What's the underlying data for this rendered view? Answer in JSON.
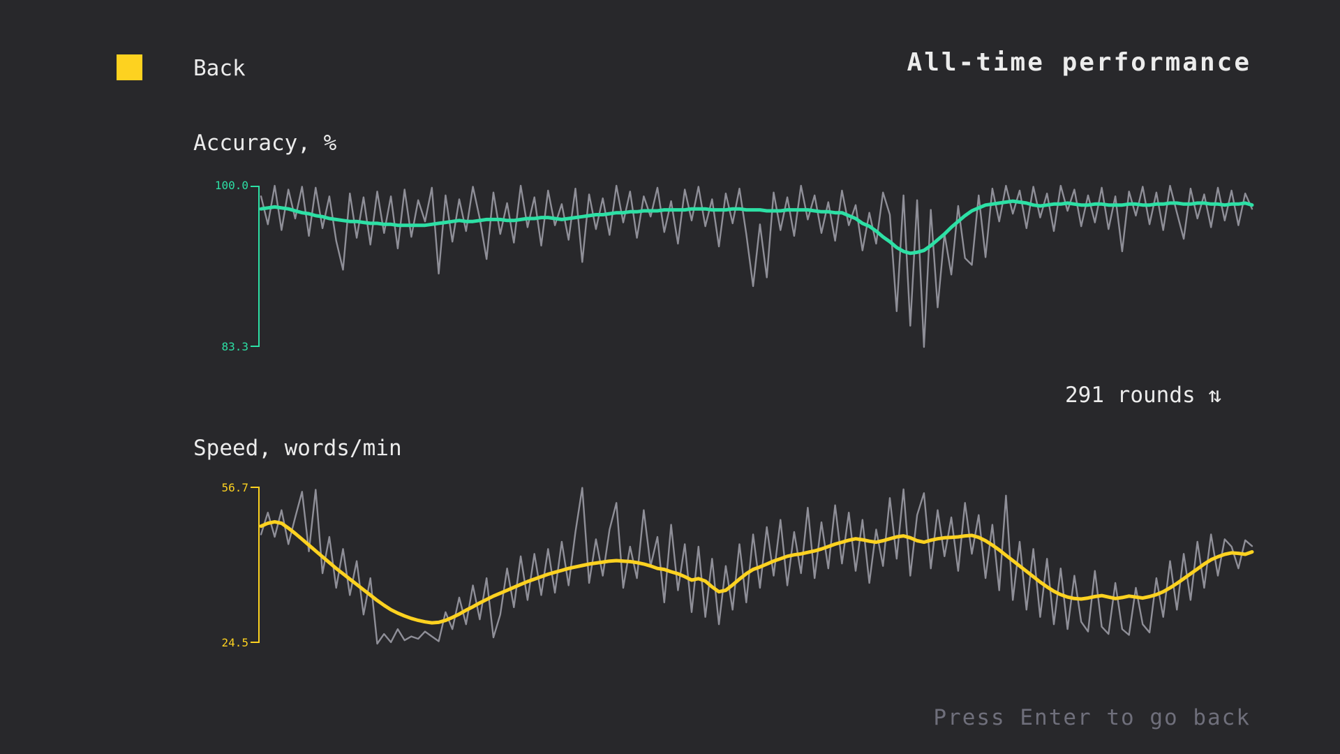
{
  "colors": {
    "background": "#28282b",
    "text": "#ececec",
    "muted": "#6f6f7b",
    "yellow": "#fdd220",
    "green": "#2de0a5",
    "gray_line": "#8f8f98"
  },
  "header": {
    "back_label": "Back",
    "title": "All-time performance"
  },
  "stats": {
    "rounds_label": "291 rounds",
    "sort_icon": "⇅"
  },
  "footer": {
    "hint": "Press Enter to go back"
  },
  "chart_data": [
    {
      "type": "line",
      "title": "Accuracy, %",
      "rounds_total": 291,
      "ylim": [
        83.3,
        100.0
      ],
      "y_tick_labels": [
        "100.0",
        "83.3"
      ],
      "axis_color": "#2de0a5",
      "legend_position": "none",
      "grid": false,
      "series": [
        {
          "name": "per-round accuracy",
          "color": "#8f8f98",
          "values": [
            98.9,
            96.0,
            100.0,
            95.4,
            99.6,
            96.6,
            99.9,
            94.8,
            99.8,
            95.6,
            98.9,
            94.3,
            91.3,
            99.2,
            94.6,
            98.8,
            93.9,
            99.4,
            95.1,
            98.9,
            93.5,
            99.6,
            94.7,
            98.5,
            96.3,
            99.8,
            90.9,
            99.0,
            94.2,
            98.6,
            95.3,
            99.9,
            96.6,
            92.4,
            99.3,
            95.0,
            98.2,
            94.1,
            100.0,
            95.7,
            98.8,
            93.8,
            99.5,
            95.9,
            98.1,
            94.4,
            99.7,
            92.1,
            99.1,
            95.5,
            98.7,
            94.9,
            100.0,
            96.2,
            99.4,
            94.6,
            98.9,
            96.8,
            99.8,
            95.2,
            98.4,
            94.0,
            99.6,
            96.4,
            99.9,
            95.8,
            98.6,
            93.7,
            99.2,
            96.1,
            99.7,
            95.0,
            89.6,
            96.0,
            90.5,
            99.3,
            95.4,
            98.8,
            94.8,
            100.0,
            96.5,
            99.0,
            95.1,
            98.3,
            94.3,
            99.5,
            95.9,
            98.0,
            93.3,
            97.2,
            94.0,
            99.3,
            97.0,
            87.0,
            99.0,
            85.5,
            98.5,
            83.3,
            97.5,
            87.4,
            95.0,
            90.8,
            97.9,
            92.5,
            91.8,
            99.0,
            92.6,
            99.7,
            96.3,
            100.0,
            97.1,
            99.5,
            95.6,
            99.9,
            96.7,
            99.2,
            95.3,
            100.0,
            97.4,
            99.6,
            95.8,
            99.0,
            96.2,
            99.8,
            95.5,
            98.9,
            93.2,
            99.4,
            96.9,
            99.9,
            96.0,
            99.3,
            95.4,
            100.0,
            97.2,
            94.5,
            99.7,
            96.6,
            99.1,
            95.7,
            99.8,
            96.4,
            99.5,
            95.9,
            99.2,
            97.6
          ]
        },
        {
          "name": "running average accuracy",
          "color": "#2de0a5",
          "values": [
            97.6,
            97.7,
            97.8,
            97.7,
            97.6,
            97.4,
            97.2,
            97.1,
            96.9,
            96.8,
            96.6,
            96.5,
            96.4,
            96.3,
            96.3,
            96.2,
            96.1,
            96.1,
            96.0,
            96.0,
            95.9,
            95.9,
            95.9,
            95.9,
            95.9,
            96.0,
            96.1,
            96.2,
            96.3,
            96.4,
            96.3,
            96.3,
            96.4,
            96.5,
            96.5,
            96.5,
            96.4,
            96.4,
            96.5,
            96.6,
            96.6,
            96.7,
            96.7,
            96.6,
            96.5,
            96.6,
            96.7,
            96.8,
            96.9,
            97.0,
            97.0,
            97.1,
            97.2,
            97.2,
            97.3,
            97.3,
            97.4,
            97.4,
            97.4,
            97.5,
            97.5,
            97.5,
            97.5,
            97.6,
            97.6,
            97.6,
            97.5,
            97.5,
            97.5,
            97.6,
            97.6,
            97.5,
            97.5,
            97.5,
            97.4,
            97.4,
            97.4,
            97.5,
            97.5,
            97.5,
            97.5,
            97.4,
            97.3,
            97.3,
            97.2,
            97.2,
            96.9,
            96.6,
            96.1,
            95.8,
            95.3,
            94.7,
            94.2,
            93.6,
            93.2,
            93.0,
            93.1,
            93.3,
            93.8,
            94.4,
            95.0,
            95.7,
            96.3,
            96.9,
            97.4,
            97.7,
            98.0,
            98.1,
            98.2,
            98.3,
            98.4,
            98.3,
            98.2,
            98.0,
            97.9,
            98.0,
            98.1,
            98.1,
            98.2,
            98.1,
            98.0,
            98.0,
            98.1,
            98.1,
            98.0,
            98.0,
            98.0,
            98.1,
            98.1,
            98.0,
            98.0,
            98.1,
            98.1,
            98.2,
            98.2,
            98.1,
            98.1,
            98.2,
            98.2,
            98.1,
            98.1,
            98.0,
            98.1,
            98.1,
            98.2,
            98.0
          ]
        }
      ]
    },
    {
      "type": "line",
      "title": "Speed, words/min",
      "rounds_total": 291,
      "ylim": [
        24.5,
        56.7
      ],
      "y_tick_labels": [
        "56.7",
        "24.5"
      ],
      "axis_color": "#fdd220",
      "legend_position": "none",
      "grid": false,
      "series": [
        {
          "name": "per-round speed",
          "color": "#8f8f98",
          "values": [
            47.0,
            51.5,
            46.5,
            52.0,
            45.0,
            50.5,
            55.8,
            43.5,
            56.2,
            39.0,
            46.5,
            36.0,
            44.0,
            34.5,
            41.5,
            30.5,
            38.0,
            24.5,
            26.5,
            24.8,
            27.5,
            25.2,
            26.0,
            25.5,
            27.0,
            26.0,
            25.0,
            31.0,
            27.5,
            34.0,
            28.5,
            36.5,
            29.5,
            38.0,
            25.8,
            30.5,
            40.0,
            32.0,
            42.5,
            33.5,
            43.0,
            34.5,
            44.0,
            35.0,
            45.5,
            36.5,
            47.5,
            56.6,
            37.0,
            46.0,
            38.5,
            48.0,
            53.5,
            36.0,
            44.5,
            38.0,
            52.0,
            40.5,
            46.5,
            33.0,
            49.0,
            35.5,
            45.0,
            31.0,
            44.5,
            30.0,
            42.0,
            28.5,
            40.5,
            31.5,
            45.0,
            33.0,
            47.0,
            36.0,
            48.5,
            38.5,
            50.0,
            36.5,
            47.5,
            39.0,
            52.5,
            38.0,
            49.5,
            40.0,
            53.0,
            41.0,
            51.5,
            39.5,
            50.0,
            37.0,
            48.0,
            40.5,
            54.5,
            42.0,
            56.3,
            38.5,
            51.0,
            55.5,
            40.0,
            52.0,
            42.5,
            50.5,
            39.5,
            53.5,
            43.0,
            51.0,
            38.0,
            49.0,
            35.5,
            55.0,
            33.5,
            45.5,
            31.5,
            44.0,
            30.0,
            42.0,
            28.5,
            40.0,
            27.5,
            38.5,
            29.0,
            27.0,
            39.5,
            28.0,
            26.5,
            37.0,
            27.5,
            26.3,
            36.0,
            28.5,
            26.8,
            38.0,
            30.0,
            41.5,
            31.5,
            43.0,
            33.5,
            45.5,
            36.0,
            47.0,
            38.5,
            46.0,
            44.5,
            40.0,
            45.8,
            44.6
          ]
        },
        {
          "name": "running average speed",
          "color": "#fdd220",
          "values": [
            48.7,
            49.3,
            49.6,
            49.3,
            48.3,
            47.2,
            46.0,
            44.8,
            43.6,
            42.4,
            41.2,
            40.0,
            38.9,
            37.8,
            36.7,
            35.6,
            34.5,
            33.4,
            32.4,
            31.5,
            30.8,
            30.2,
            29.7,
            29.3,
            29.0,
            28.8,
            28.9,
            29.3,
            29.9,
            30.6,
            31.4,
            32.1,
            32.9,
            33.6,
            34.3,
            34.9,
            35.5,
            36.1,
            36.7,
            37.3,
            37.8,
            38.3,
            38.8,
            39.2,
            39.6,
            40.0,
            40.3,
            40.6,
            40.9,
            41.1,
            41.3,
            41.5,
            41.6,
            41.5,
            41.4,
            41.2,
            40.9,
            40.5,
            40.0,
            39.8,
            39.3,
            38.9,
            38.3,
            37.6,
            37.9,
            37.4,
            36.2,
            35.2,
            35.5,
            36.6,
            37.8,
            38.9,
            39.8,
            40.3,
            40.9,
            41.5,
            42.0,
            42.5,
            42.8,
            43.0,
            43.3,
            43.6,
            44.0,
            44.5,
            45.0,
            45.4,
            45.8,
            46.1,
            45.9,
            45.6,
            45.4,
            45.7,
            46.1,
            46.5,
            46.7,
            46.3,
            45.7,
            45.4,
            45.8,
            46.1,
            46.3,
            46.4,
            46.5,
            46.7,
            46.8,
            46.4,
            45.7,
            44.8,
            43.8,
            42.7,
            41.6,
            40.5,
            39.4,
            38.3,
            37.2,
            36.2,
            35.3,
            34.6,
            34.1,
            33.8,
            33.7,
            33.9,
            34.2,
            34.4,
            34.1,
            33.8,
            34.0,
            34.3,
            34.1,
            33.9,
            34.2,
            34.6,
            35.2,
            36.0,
            36.9,
            37.9,
            38.9,
            39.9,
            40.9,
            41.8,
            42.4,
            42.9,
            43.2,
            43.1,
            42.9,
            43.4
          ]
        }
      ]
    }
  ]
}
